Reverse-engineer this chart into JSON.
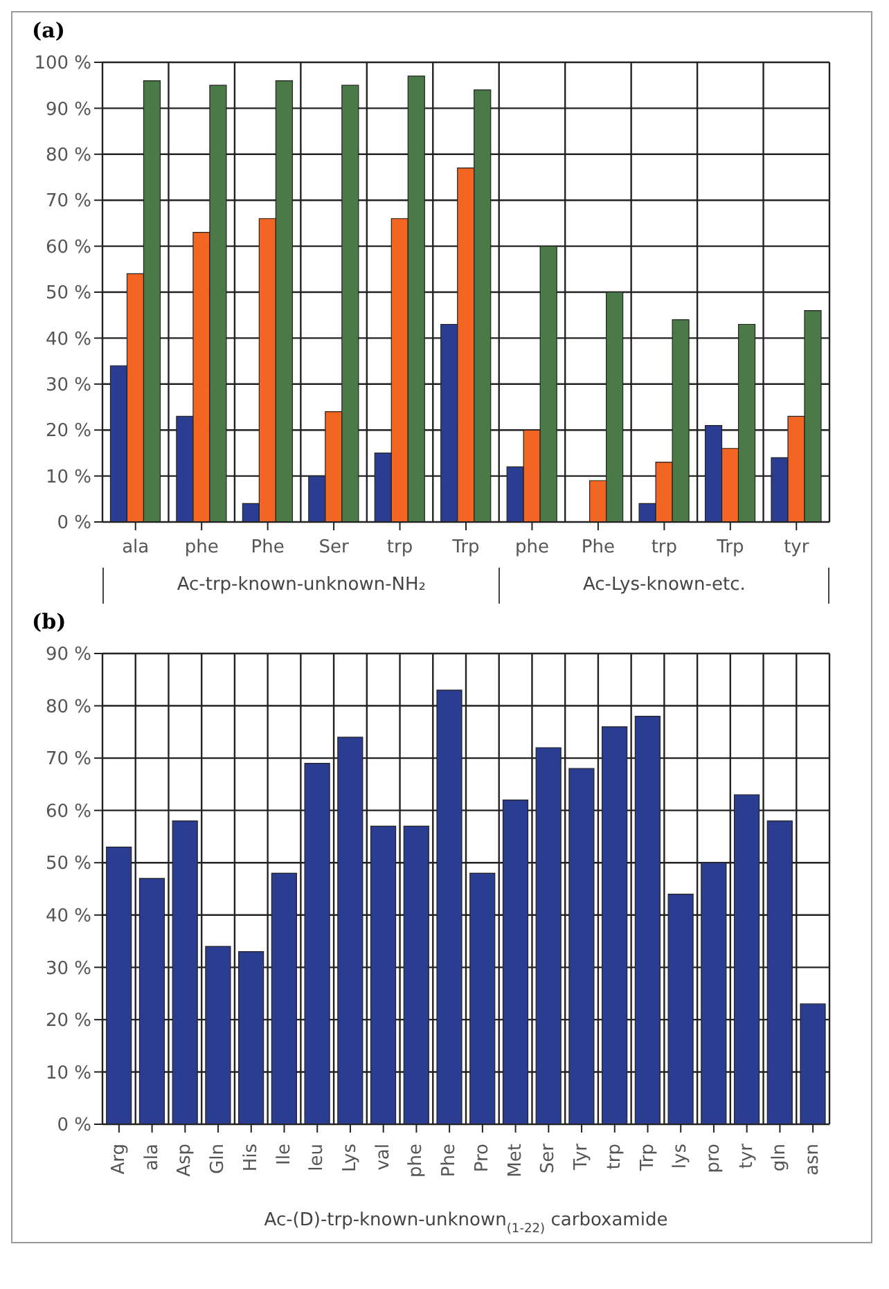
{
  "chart_data": [
    {
      "type": "bar",
      "title": "(a)",
      "categories": [
        "ala",
        "phe",
        "Phe",
        "Ser",
        "trp",
        "Trp",
        "phe",
        "Phe",
        "trp",
        "Trp",
        "tyr"
      ],
      "series": [
        {
          "color": "#2b3d91",
          "values": [
            34,
            23,
            4,
            10,
            15,
            43,
            12,
            0,
            4,
            21,
            14
          ]
        },
        {
          "color": "#f26522",
          "values": [
            54,
            63,
            66,
            24,
            66,
            77,
            20,
            9,
            13,
            16,
            23
          ]
        },
        {
          "color": "#4a7a45",
          "values": [
            96,
            95,
            96,
            95,
            97,
            94,
            60,
            50,
            44,
            43,
            46
          ]
        }
      ],
      "ylim": [
        0,
        100
      ],
      "yticks": [
        {
          "value": 0,
          "label": "0 %"
        },
        {
          "value": 10,
          "label": "10 %"
        },
        {
          "value": 20,
          "label": "20 %"
        },
        {
          "value": 30,
          "label": "30 %"
        },
        {
          "value": 40,
          "label": "40 %"
        },
        {
          "value": 50,
          "label": "50 %"
        },
        {
          "value": 60,
          "label": "60 %"
        },
        {
          "value": 70,
          "label": "70 %"
        },
        {
          "value": 80,
          "label": "80 %"
        },
        {
          "value": 90,
          "label": "90 %"
        },
        {
          "value": 100,
          "label": "100 %"
        }
      ],
      "grid": true,
      "annotations": [
        "Ac-trp-known-unknown-NH₂",
        "Ac-Lys-known-etc."
      ]
    },
    {
      "type": "bar",
      "title": "(b)",
      "categories": [
        "Arg",
        "ala",
        "Asp",
        "Gln",
        "His",
        "Ile",
        "leu",
        "Lys",
        "val",
        "phe",
        "Phe",
        "Pro",
        "Met",
        "Ser",
        "Tyr",
        "trp",
        "Trp",
        "lys",
        "pro",
        "tyr",
        "gln",
        "asn"
      ],
      "series": [
        {
          "color": "#2b3d91",
          "values": [
            53,
            47,
            58,
            34,
            33,
            48,
            69,
            74,
            57,
            57,
            83,
            48,
            62,
            72,
            68,
            76,
            78,
            44,
            50,
            63,
            58,
            23
          ]
        }
      ],
      "ylim": [
        0,
        90
      ],
      "yticks": [
        {
          "value": 0,
          "label": "0 %"
        },
        {
          "value": 10,
          "label": "10 %"
        },
        {
          "value": 20,
          "label": "20 %"
        },
        {
          "value": 30,
          "label": "30 %"
        },
        {
          "value": 40,
          "label": "40 %"
        },
        {
          "value": 50,
          "label": "50 %"
        },
        {
          "value": 60,
          "label": "60 %"
        },
        {
          "value": 70,
          "label": "70 %"
        },
        {
          "value": 80,
          "label": "80 %"
        },
        {
          "value": 90,
          "label": "90 %"
        }
      ],
      "grid": true,
      "xlabel": "Ac-(D)-trp-known-unknown$_{(1-22)}$ carboxamide"
    }
  ]
}
